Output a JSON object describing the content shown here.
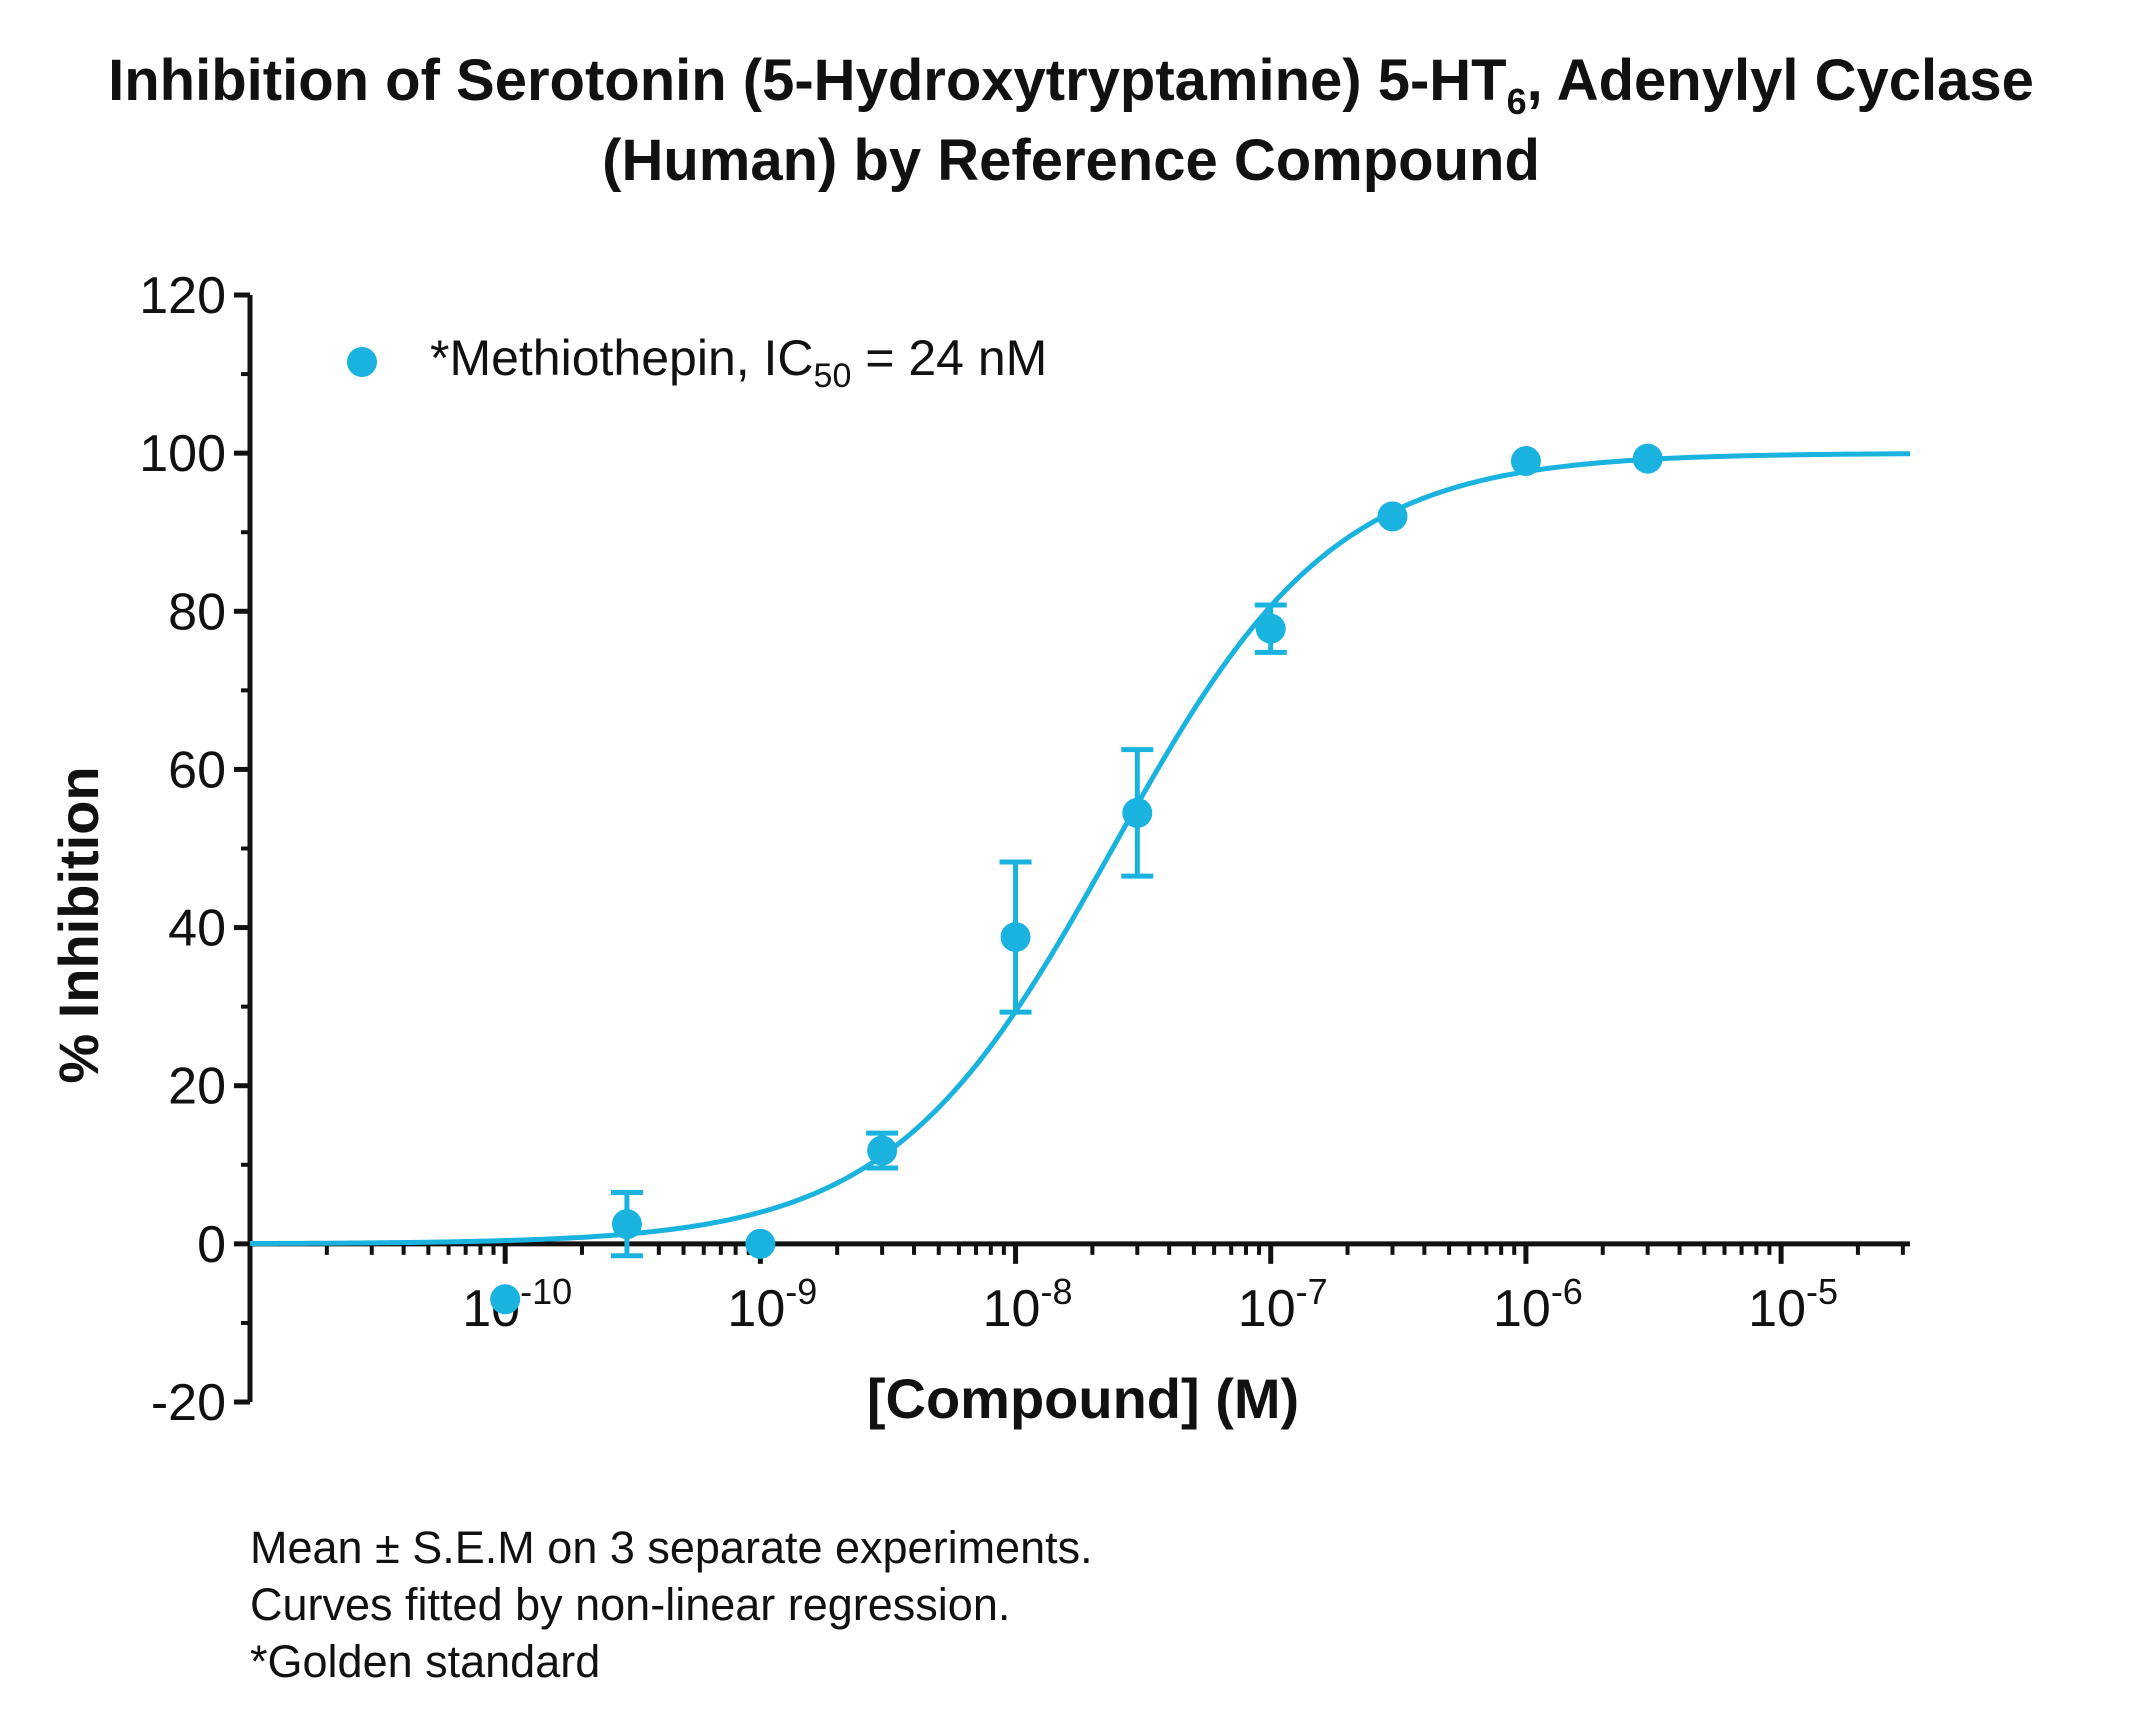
{
  "chart_data": {
    "type": "scatter",
    "title_line1": "Inhibition of Serotonin (5-Hydroxytryptamine) 5-HT",
    "title_line1_sub": "6",
    "title_line1_tail": ", Adenylyl Cyclase",
    "title_line2": "(Human) by Reference Compound",
    "xlabel": "[Compound] (M)",
    "ylabel": "% Inhibition",
    "x_scale": "log",
    "xlim": [
      1e-11,
      3.2e-05
    ],
    "ylim": [
      -20,
      120
    ],
    "y_ticks": [
      -20,
      0,
      20,
      40,
      60,
      80,
      100,
      120
    ],
    "y_tick_labels": [
      "-20",
      "0",
      "20",
      "40",
      "60",
      "80",
      "100",
      "120"
    ],
    "x_ticks": [
      {
        "value": 1e-10,
        "base": "10",
        "exp": "-10"
      },
      {
        "value": 1e-09,
        "base": "10",
        "exp": "-9"
      },
      {
        "value": 1e-08,
        "base": "10",
        "exp": "-8"
      },
      {
        "value": 1e-07,
        "base": "10",
        "exp": "-7"
      },
      {
        "value": 1e-06,
        "base": "10",
        "exp": "-6"
      },
      {
        "value": 1e-05,
        "base": "10",
        "exp": "-5"
      }
    ],
    "grid": false,
    "legend_position": "top-left",
    "series": [
      {
        "name": "*Methiothepin, IC",
        "name_sub": "50",
        "name_tail": " = 24 nM",
        "color": "#1ab2df",
        "points": [
          {
            "x": 1e-10,
            "y": -7,
            "err": null
          },
          {
            "x": 3e-10,
            "y": 2.5,
            "err": 4
          },
          {
            "x": 1e-09,
            "y": 0,
            "err": null
          },
          {
            "x": 3e-09,
            "y": 11.8,
            "err": 2.2
          },
          {
            "x": 1e-08,
            "y": 38.8,
            "err": 9.5
          },
          {
            "x": 3e-08,
            "y": 54.5,
            "err": 8
          },
          {
            "x": 1e-07,
            "y": 77.8,
            "err": 3
          },
          {
            "x": 3e-07,
            "y": 92,
            "err": null
          },
          {
            "x": 1e-06,
            "y": 99,
            "err": null
          },
          {
            "x": 3e-06,
            "y": 99.3,
            "err": null
          }
        ],
        "fit": {
          "model": "four-parameter logistic",
          "bottom": 0,
          "top": 100,
          "ic50": 2.4e-08,
          "hill": 1
        }
      }
    ],
    "footnotes": [
      "Mean ± S.E.M on 3 separate experiments.",
      "Curves fitted by non-linear regression.",
      "*Golden standard"
    ]
  }
}
